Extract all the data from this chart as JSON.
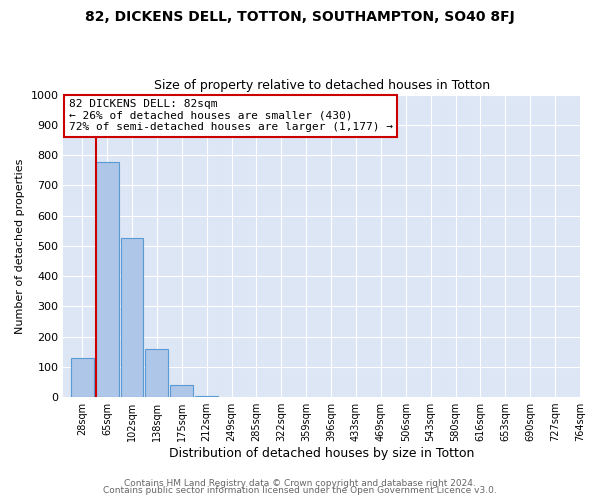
{
  "title": "82, DICKENS DELL, TOTTON, SOUTHAMPTON, SO40 8FJ",
  "subtitle": "Size of property relative to detached houses in Totton",
  "xlabel": "Distribution of detached houses by size in Totton",
  "ylabel": "Number of detached properties",
  "bar_labels": [
    "28sqm",
    "65sqm",
    "102sqm",
    "138sqm",
    "175sqm",
    "212sqm",
    "249sqm",
    "285sqm",
    "322sqm",
    "359sqm",
    "396sqm",
    "433sqm",
    "469sqm",
    "506sqm",
    "543sqm",
    "580sqm",
    "616sqm",
    "653sqm",
    "690sqm",
    "727sqm",
    "764sqm"
  ],
  "bar_values": [
    130,
    778,
    525,
    158,
    40,
    5,
    0,
    0,
    0,
    0,
    0,
    0,
    0,
    0,
    0,
    0,
    0,
    0,
    0,
    0,
    0
  ],
  "bar_color": "#aec6e8",
  "bar_edge_color": "#5b9bd5",
  "figure_bg_color": "#ffffff",
  "plot_bg_color": "#dce6f5",
  "grid_color": "#ffffff",
  "marker_line_color": "#cc0000",
  "annotation_title": "82 DICKENS DELL: 82sqm",
  "annotation_line1": "← 26% of detached houses are smaller (430)",
  "annotation_line2": "72% of semi-detached houses are larger (1,177) →",
  "annotation_box_color": "#ffffff",
  "annotation_box_edge": "#cc0000",
  "ylim": [
    0,
    1000
  ],
  "yticks": [
    0,
    100,
    200,
    300,
    400,
    500,
    600,
    700,
    800,
    900,
    1000
  ],
  "footer1": "Contains HM Land Registry data © Crown copyright and database right 2024.",
  "footer2": "Contains public sector information licensed under the Open Government Licence v3.0.",
  "title_fontsize": 10,
  "subtitle_fontsize": 9,
  "xlabel_fontsize": 9,
  "ylabel_fontsize": 8,
  "tick_fontsize": 8,
  "xtick_fontsize": 7,
  "footer_fontsize": 6.5,
  "annotation_fontsize": 8
}
